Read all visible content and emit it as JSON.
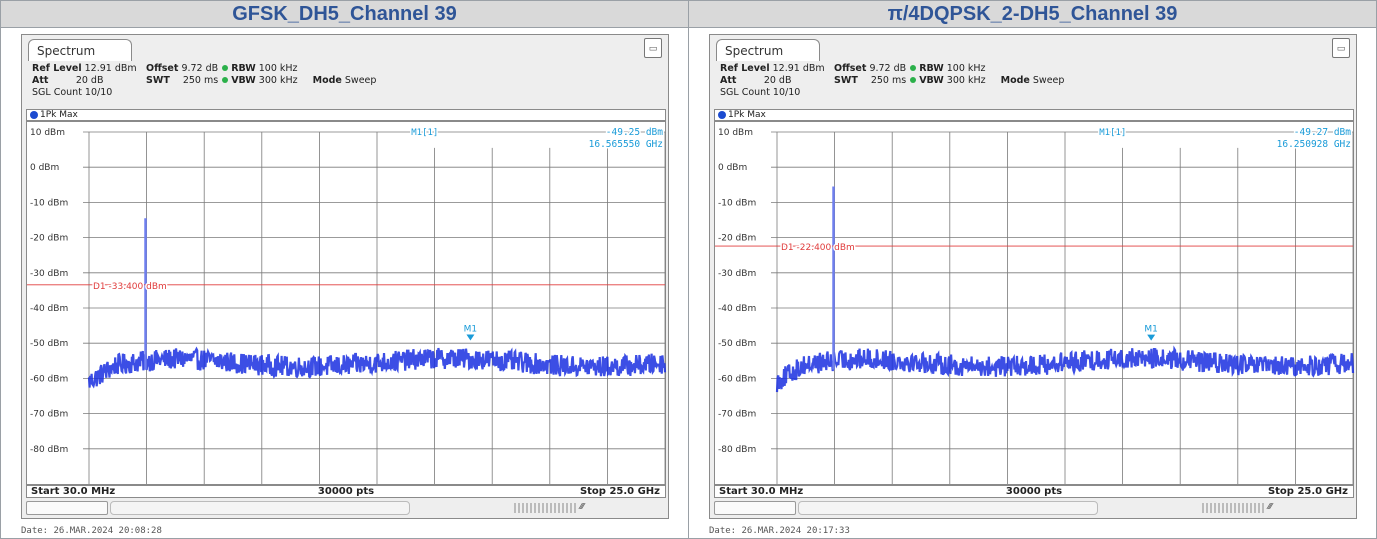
{
  "headers": [
    "GFSK_DH5_Channel 39",
    "π/4DQPSK_2-DH5_Channel 39"
  ],
  "panels": [
    {
      "tab": "Spectrum",
      "ref_level_label": "Ref Level",
      "ref_level": "12.91 dBm",
      "offset_label": "Offset",
      "offset": "9.72 dB",
      "rbw_label": "RBW",
      "rbw": "100 kHz",
      "att_label": "Att",
      "att": "20 dB",
      "swt_label": "SWT",
      "swt": "250 ms",
      "vbw_label": "VBW",
      "vbw": "300 kHz",
      "mode_label": "Mode",
      "mode": "Sweep",
      "sgl_count": "SGL Count 10/10",
      "trace": "1Pk Max",
      "marker_label": "M1[1]",
      "marker_level": "-49.25 dBm",
      "marker_freq": "16.565550 GHz",
      "marker_tag": "M1",
      "marker_x_ghz": 16.56555,
      "marker_y_dbm": -49.25,
      "display_line_label": "D1  -33.400 dBm",
      "display_line_dbm": -33.4,
      "start": "Start 30.0 MHz",
      "points": "30000 pts",
      "stop": "Stop 25.0 GHz",
      "date": "Date: 26.MAR.2024  20:08:28",
      "spike_freq_ghz": 2.48,
      "spike_top_dbm": -14.5,
      "noise_floor_dbm": -57.5
    },
    {
      "tab": "Spectrum",
      "ref_level_label": "Ref Level",
      "ref_level": "12.91 dBm",
      "offset_label": "Offset",
      "offset": "9.72 dB",
      "rbw_label": "RBW",
      "rbw": "100 kHz",
      "att_label": "Att",
      "att": "20 dB",
      "swt_label": "SWT",
      "swt": "250 ms",
      "vbw_label": "VBW",
      "vbw": "300 kHz",
      "mode_label": "Mode",
      "mode": "Sweep",
      "sgl_count": "SGL Count 10/10",
      "trace": "1Pk Max",
      "marker_label": "M1[1]",
      "marker_level": "-49.27 dBm",
      "marker_freq": "16.250928 GHz",
      "marker_tag": "M1",
      "marker_x_ghz": 16.250928,
      "marker_y_dbm": -49.27,
      "display_line_label": "D1  -22.400 dBm",
      "display_line_dbm": -22.4,
      "start": "Start 30.0 MHz",
      "points": "30000 pts",
      "stop": "Stop 25.0 GHz",
      "date": "Date: 26.MAR.2024  20:17:33",
      "spike_freq_ghz": 2.48,
      "spike_top_dbm": -5.5,
      "noise_floor_dbm": -57.5
    }
  ],
  "axis": {
    "y_labels": [
      "10 dBm",
      "0 dBm",
      "-10 dBm",
      "-20 dBm",
      "-30 dBm",
      "-40 dBm",
      "-50 dBm",
      "-60 dBm",
      "-70 dBm",
      "-80 dBm"
    ],
    "y_top_dbm": 10,
    "y_bottom_dbm": -90,
    "x_start_ghz": 0.03,
    "x_stop_ghz": 25.0,
    "x_divisions": 10,
    "y_divisions": 10
  },
  "colors": {
    "header_text": "#2f5597",
    "trace": "#1a2fe0",
    "display_line": "#e03c3c",
    "marker": "#1a9bd8",
    "grid": "#7a7a7a"
  }
}
